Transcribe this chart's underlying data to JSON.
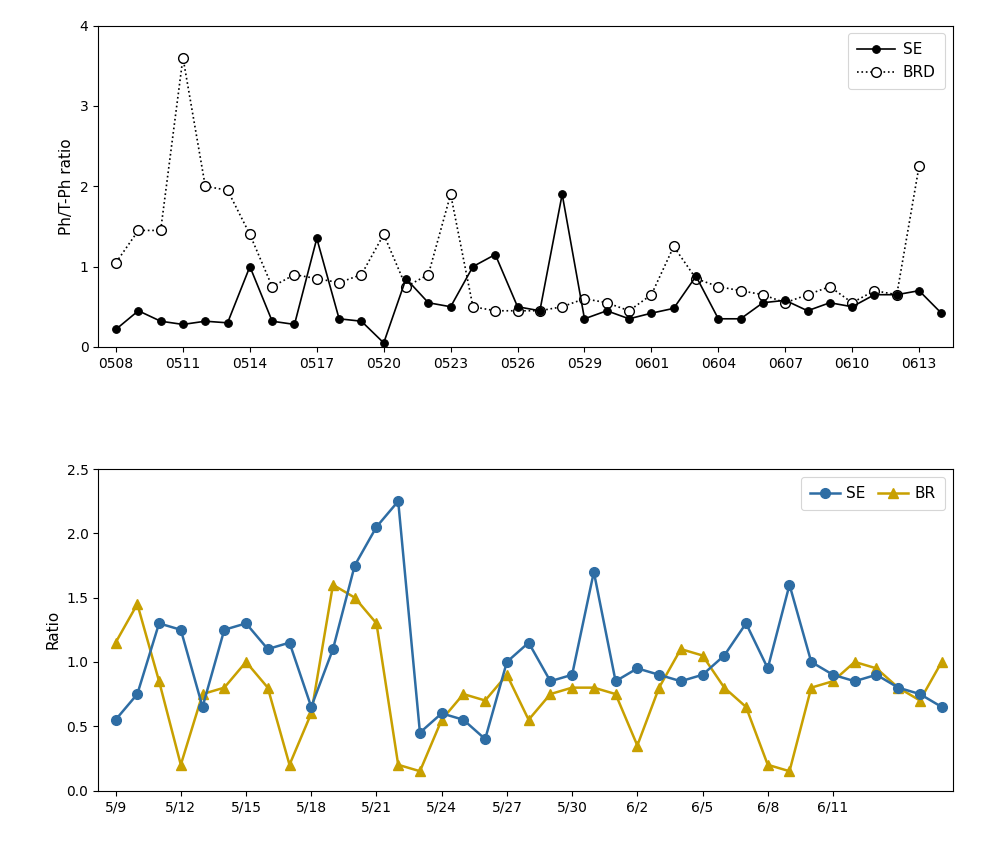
{
  "chart1": {
    "x_labels": [
      "0508",
      "0511",
      "0514",
      "0517",
      "0520",
      "0523",
      "0526",
      "0529",
      "0601",
      "0604",
      "0607",
      "0610",
      "0613"
    ],
    "SE_y": [
      0.22,
      0.45,
      0.32,
      0.28,
      0.32,
      0.3,
      1.0,
      0.32,
      0.28,
      1.35,
      0.35,
      0.32,
      0.05,
      0.85,
      0.55,
      0.5,
      1.0,
      1.15,
      0.5,
      0.45,
      1.9,
      0.35,
      0.45,
      0.35,
      0.42,
      0.48,
      0.88,
      0.35,
      0.35,
      0.55,
      0.58,
      0.45,
      0.55,
      0.5,
      0.65,
      0.65,
      0.7,
      0.42
    ],
    "BRD_y": [
      1.05,
      1.45,
      1.45,
      3.6,
      2.0,
      1.95,
      1.4,
      0.75,
      0.9,
      0.85,
      0.8,
      0.9,
      1.4,
      0.75,
      0.9,
      1.9,
      0.5,
      0.45,
      0.45,
      0.45,
      0.5,
      0.6,
      0.55,
      0.45,
      0.65,
      1.25,
      0.85,
      0.75,
      0.7,
      0.65,
      0.55,
      0.65,
      0.75,
      0.55,
      0.7,
      0.65,
      2.25,
      null
    ],
    "ylabel": "Ph/T-Ph ratio",
    "ylim": [
      0,
      4
    ],
    "yticks": [
      0,
      1,
      2,
      3,
      4
    ],
    "n_points": 38,
    "tick_positions": [
      0,
      3,
      6,
      9,
      12,
      15,
      18,
      21,
      24,
      27,
      30,
      33,
      36
    ]
  },
  "chart2": {
    "x_labels": [
      "5/9",
      "5/12",
      "5/15",
      "5/18",
      "5/21",
      "5/24",
      "5/27",
      "5/30",
      "6/2",
      "6/5",
      "6/8",
      "6/11"
    ],
    "SE_y": [
      0.55,
      0.75,
      1.3,
      1.25,
      0.65,
      1.25,
      1.3,
      1.1,
      1.15,
      0.65,
      1.1,
      1.75,
      2.05,
      2.25,
      0.45,
      0.6,
      0.55,
      0.4,
      1.0,
      1.15,
      0.85,
      0.9,
      1.7,
      0.85,
      0.95,
      0.9,
      0.85,
      0.9,
      1.05,
      1.3,
      0.95,
      1.6,
      1.0,
      0.9,
      0.85,
      0.9,
      0.8,
      0.75,
      0.65
    ],
    "BR_y": [
      1.15,
      1.45,
      0.85,
      0.2,
      0.75,
      0.8,
      1.0,
      0.8,
      0.2,
      0.6,
      1.6,
      1.5,
      1.3,
      0.2,
      0.15,
      0.55,
      0.75,
      0.7,
      0.9,
      0.55,
      0.75,
      0.8,
      0.8,
      0.75,
      0.35,
      0.8,
      1.1,
      1.05,
      0.8,
      0.65,
      0.2,
      0.15,
      0.8,
      0.85,
      1.0,
      0.95,
      0.8,
      0.7,
      1.0
    ],
    "ylabel": "Ratio",
    "ylim": [
      0,
      2.5
    ],
    "yticks": [
      0,
      0.5,
      1.0,
      1.5,
      2.0,
      2.5
    ],
    "n_points": 39,
    "tick_positions": [
      0,
      3,
      6,
      9,
      12,
      15,
      18,
      21,
      24,
      27,
      30,
      33
    ],
    "SE_color": "#2E6DA4",
    "BR_color": "#C8A000"
  }
}
